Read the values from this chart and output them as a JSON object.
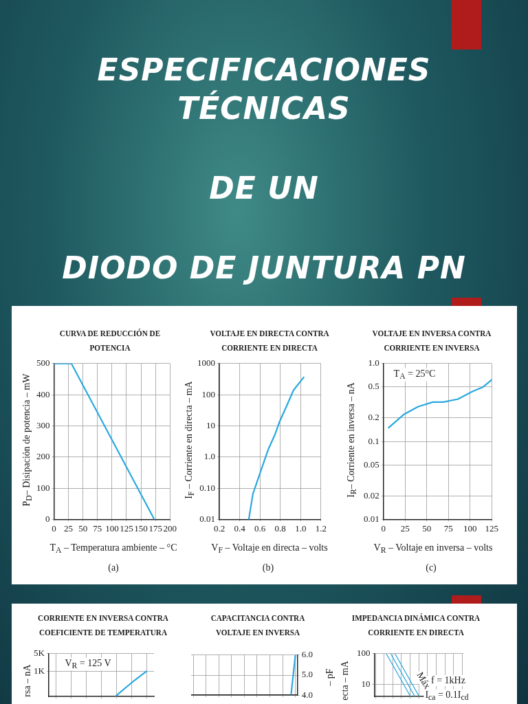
{
  "chart_data": [
    {
      "type": "other",
      "title": "ESPECIFICACIONES TÉCNICAS",
      "annotations": [
        "DE UN",
        "DIODO DE JUNTURA PN"
      ]
    },
    {
      "type": "line",
      "title": "CURVA DE REDUCCIÓN DE POTENCIA",
      "xlabel": "T$_{A}$ – Temperatura ambiente – °C",
      "ylabel": "P$_{D}$– Disipación de potencia – mW",
      "x": [
        0,
        30,
        173
      ],
      "series": [
        {
          "color": "#29a8e0",
          "values": [
            500,
            500,
            0
          ]
        }
      ],
      "xlim": [
        0,
        200
      ],
      "xticks": [
        0,
        25,
        50,
        75,
        100,
        125,
        150,
        175,
        200
      ],
      "ylim": [
        0,
        500
      ],
      "yticks": [
        0,
        100,
        200,
        300,
        400,
        500
      ],
      "grid": true,
      "annotations": [
        "(a)"
      ]
    },
    {
      "type": "line",
      "title": "VOLTAJE EN DIRECTA CONTRA CORRIENTE EN DIRECTA",
      "xlabel": "V$_{F}$ – Voltaje en directa – volts",
      "ylabel": "I$_{F}$ – Corriente en directa – mA",
      "x": [
        0.49,
        0.53,
        0.6,
        0.68,
        0.75,
        0.79,
        0.86,
        0.93,
        1.03
      ],
      "series": [
        {
          "color": "#29a8e0",
          "values": [
            0.01,
            0.065,
            0.3,
            1.7,
            5.5,
            13,
            42,
            140,
            360
          ]
        }
      ],
      "log": "y",
      "xlim": [
        0.2,
        1.2
      ],
      "xticks": [
        0.2,
        0.4,
        0.6,
        0.8,
        {
          "value": 1,
          "label": "1.0"
        },
        1.2
      ],
      "ylim": [
        0.01,
        1000
      ],
      "yticks": [
        0.01,
        {
          "value": 0.1,
          "label": "0.10"
        },
        {
          "value": 1,
          "label": "1.0"
        },
        10,
        100,
        1000
      ],
      "grid": true,
      "annotations": [
        "(b)"
      ]
    },
    {
      "type": "line",
      "title": "VOLTAJE EN INVERSA CONTRA CORRIENTE EN INVERSA",
      "xlabel": "V$_{R}$ – Voltaje en inversa – volts",
      "ylabel": "I$_{R}$– Corriente en inversa – nA",
      "x": [
        6,
        23,
        40,
        57,
        69,
        86,
        103,
        115,
        125
      ],
      "series": [
        {
          "color": "#29a8e0",
          "values": [
            0.15,
            0.22,
            0.28,
            0.32,
            0.32,
            0.35,
            0.44,
            0.5,
            0.62
          ]
        }
      ],
      "log": "y",
      "xlim": [
        0,
        125
      ],
      "xticks": [
        0,
        25,
        50,
        75,
        100,
        125
      ],
      "ylim": [
        0.01,
        1
      ],
      "yticks": [
        0.01,
        0.02,
        0.05,
        0.1,
        0.2,
        0.5,
        {
          "value": 1,
          "label": "1.0"
        }
      ],
      "grid": true,
      "annotations": [
        "T$_{A}$ = 25°C",
        "(c)"
      ]
    },
    {
      "type": "line",
      "title": "CORRIENTE EN INVERSA CONTRA COEFICIENTE DE TEMPERATURA",
      "ylabel": "rsa – nA",
      "categories": [
        null,
        null,
        null,
        null,
        null,
        null,
        null
      ],
      "series": [
        {
          "color": "#29a8e0",
          "values": [
            null,
            null,
            null,
            null,
            110,
            350,
            1000
          ]
        }
      ],
      "log": "y",
      "ylim": [
        100,
        5000
      ],
      "yticks": [
        {
          "value": 1000,
          "label": "1K"
        },
        {
          "value": 5000,
          "label": "5K"
        }
      ],
      "tick_labels": "y",
      "grid": true,
      "annotations": [
        "V$_{R}$ = 125 V"
      ]
    },
    {
      "type": "line",
      "title": "CAPACITANCIA CONTRA VOLTAJE EN INVERSA",
      "ylabel": "– pF",
      "categories": [
        null,
        null,
        null,
        null,
        null,
        null,
        null,
        null,
        null,
        null,
        null,
        null,
        null,
        null,
        null,
        null,
        null,
        null,
        null,
        null,
        null,
        null,
        null,
        null,
        null
      ],
      "series": [
        {
          "color": "#29a8e0",
          "values": [
            null,
            null,
            null,
            null,
            null,
            null,
            null,
            null,
            null,
            null,
            null,
            null,
            null,
            null,
            null,
            null,
            null,
            null,
            null,
            null,
            null,
            null,
            null,
            4.05,
            6.0
          ]
        }
      ],
      "ylim": [
        4,
        6
      ],
      "yticks": [
        {
          "value": 4,
          "label": "4.0"
        },
        {
          "value": 5,
          "label": "5.0"
        },
        {
          "value": 6,
          "label": "6.0"
        }
      ],
      "tick_labels": "y",
      "grid": true
    },
    {
      "type": "line",
      "title": "IMPEDANCIA DINÁMICA CONTRA CORRIENTE EN DIRECTA",
      "ylabel": "ecta – mA",
      "categories": [
        null,
        null,
        null,
        null,
        null,
        null,
        null,
        null,
        null,
        null,
        null,
        null,
        null,
        null,
        null,
        null,
        null,
        null,
        null,
        null,
        null,
        null,
        null,
        null,
        null,
        null,
        null,
        null,
        null,
        null,
        null,
        null,
        null,
        null,
        null,
        null,
        null,
        null,
        null,
        null,
        null
      ],
      "series": [
        {
          "color": "#29a8e0",
          "values": [
            null,
            null,
            null,
            null,
            null,
            100,
            null,
            null,
            null,
            null,
            null,
            null,
            null,
            null,
            null,
            null,
            4.2,
            null,
            null,
            null,
            null,
            null,
            null,
            null,
            null,
            null,
            null,
            null,
            null,
            null,
            null,
            null,
            null,
            null,
            null,
            null,
            null,
            null,
            null,
            null,
            null
          ]
        },
        {
          "color": "#29a8e0",
          "values": [
            null,
            null,
            null,
            null,
            null,
            null,
            null,
            100,
            null,
            null,
            null,
            null,
            null,
            null,
            null,
            null,
            null,
            null,
            4.2,
            null,
            null,
            null,
            null,
            null,
            null,
            null,
            null,
            null,
            null,
            null,
            null,
            null,
            null,
            null,
            null,
            null,
            null,
            null,
            null,
            null,
            null
          ]
        },
        {
          "color": "#29a8e0",
          "values": [
            null,
            null,
            null,
            null,
            null,
            null,
            null,
            null,
            null,
            100,
            null,
            null,
            null,
            null,
            null,
            null,
            null,
            null,
            null,
            null,
            4.2,
            null,
            null,
            null,
            null,
            null,
            null,
            null,
            null,
            null,
            null,
            null,
            null,
            null,
            null,
            null,
            null,
            null,
            null,
            null,
            null
          ]
        }
      ],
      "log": "y",
      "ylim": [
        4,
        100
      ],
      "yticks": [
        10,
        100
      ],
      "tick_labels": "y",
      "grid": true,
      "annotations": [
        "f = 1kHz",
        "I$_{ca}$ = 0.1I$_{cd}$",
        "Máx"
      ]
    }
  ]
}
